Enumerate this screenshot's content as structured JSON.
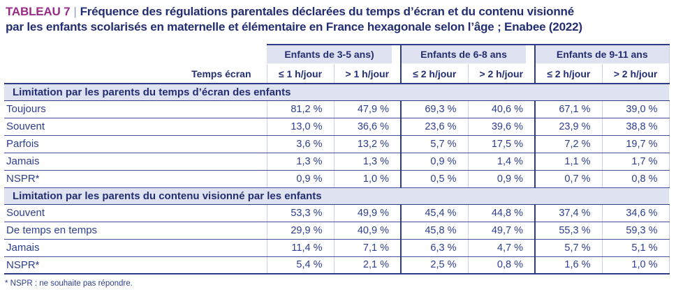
{
  "title": {
    "number": "TABLEAU 7",
    "separator": "|",
    "line1": "Fréquence des régulations parentales déclarées du temps d’écran et du contenu visionné",
    "line2": "par les enfants scolarisés en maternelle et élémentaire en France hexagonale selon l’âge ; Enabee (2022)"
  },
  "colors": {
    "magenta": "#9a2b89",
    "navy-dark": "#232e72",
    "navy-text": "#2c3e8f",
    "band-bg": "#dfe2f0",
    "line-dark": "#2c3c85",
    "line-mid": "#40509b",
    "line-light": "#c6cee6",
    "sep": "#8c9bc9"
  },
  "chart_data": {
    "type": "table",
    "title": "TABLEAU 7 | Fréquence des régulations parentales déclarées du temps d’écran et du contenu visionné par les enfants scolarisés en maternelle et élémentaire en France hexagonale selon l’âge ; Enabee (2022)",
    "col_groups": [
      "Enfants de 3-5 ans)",
      "Enfants de 6-8 ans",
      "Enfants de 9-11 ans"
    ],
    "columns": [
      "Temps écran",
      "≤ 1 h/jour",
      "> 1 h/jour",
      "≤ 2 h/jour",
      "> 2 h/jour",
      "≤ 2 h/jour",
      "> 2 h/jour"
    ],
    "sections": [
      {
        "header": "Limitation par les parents du temps d’écran des enfants",
        "rows": [
          {
            "label": "Toujours",
            "values": [
              "81,2 %",
              "47,9 %",
              "69,3 %",
              "40,6 %",
              "67,1 %",
              "39,0 %"
            ]
          },
          {
            "label": "Souvent",
            "values": [
              "13,0 %",
              "36,6 %",
              "23,6 %",
              "39,6 %",
              "23,9 %",
              "38,8 %"
            ]
          },
          {
            "label": "Parfois",
            "values": [
              "3,6 %",
              "13,2 %",
              "5,7 %",
              "17,5 %",
              "7,2 %",
              "19,7 %"
            ]
          },
          {
            "label": "Jamais",
            "values": [
              "1,3 %",
              "1,3 %",
              "0,9 %",
              "1,4 %",
              "1,1 %",
              "1,7 %"
            ]
          },
          {
            "label": "NSPR*",
            "values": [
              "0,9 %",
              "1,0 %",
              "0,5 %",
              "0,9 %",
              "0,7 %",
              "0,8 %"
            ]
          }
        ]
      },
      {
        "header": "Limitation par les parents du contenu visionné par les enfants",
        "rows": [
          {
            "label": "Souvent",
            "values": [
              "53,3 %",
              "49,9 %",
              "45,4 %",
              "44,8 %",
              "37,4 %",
              "34,6 %"
            ]
          },
          {
            "label": "De temps en temps",
            "values": [
              "29,9 %",
              "40,9 %",
              "45,8 %",
              "49,7 %",
              "55,3 %",
              "59,3 %"
            ]
          },
          {
            "label": "Jamais",
            "values": [
              "11,4 %",
              "7,1 %",
              "6,3 %",
              "4,7 %",
              "5,7 %",
              "5,1 %"
            ]
          },
          {
            "label": "NSPR*",
            "values": [
              "5,4 %",
              "2,1 %",
              "2,5 %",
              "0,8 %",
              "1,6 %",
              "1,0 %"
            ]
          }
        ]
      }
    ],
    "footnote": "* NSPR : ne souhaite pas répondre."
  }
}
